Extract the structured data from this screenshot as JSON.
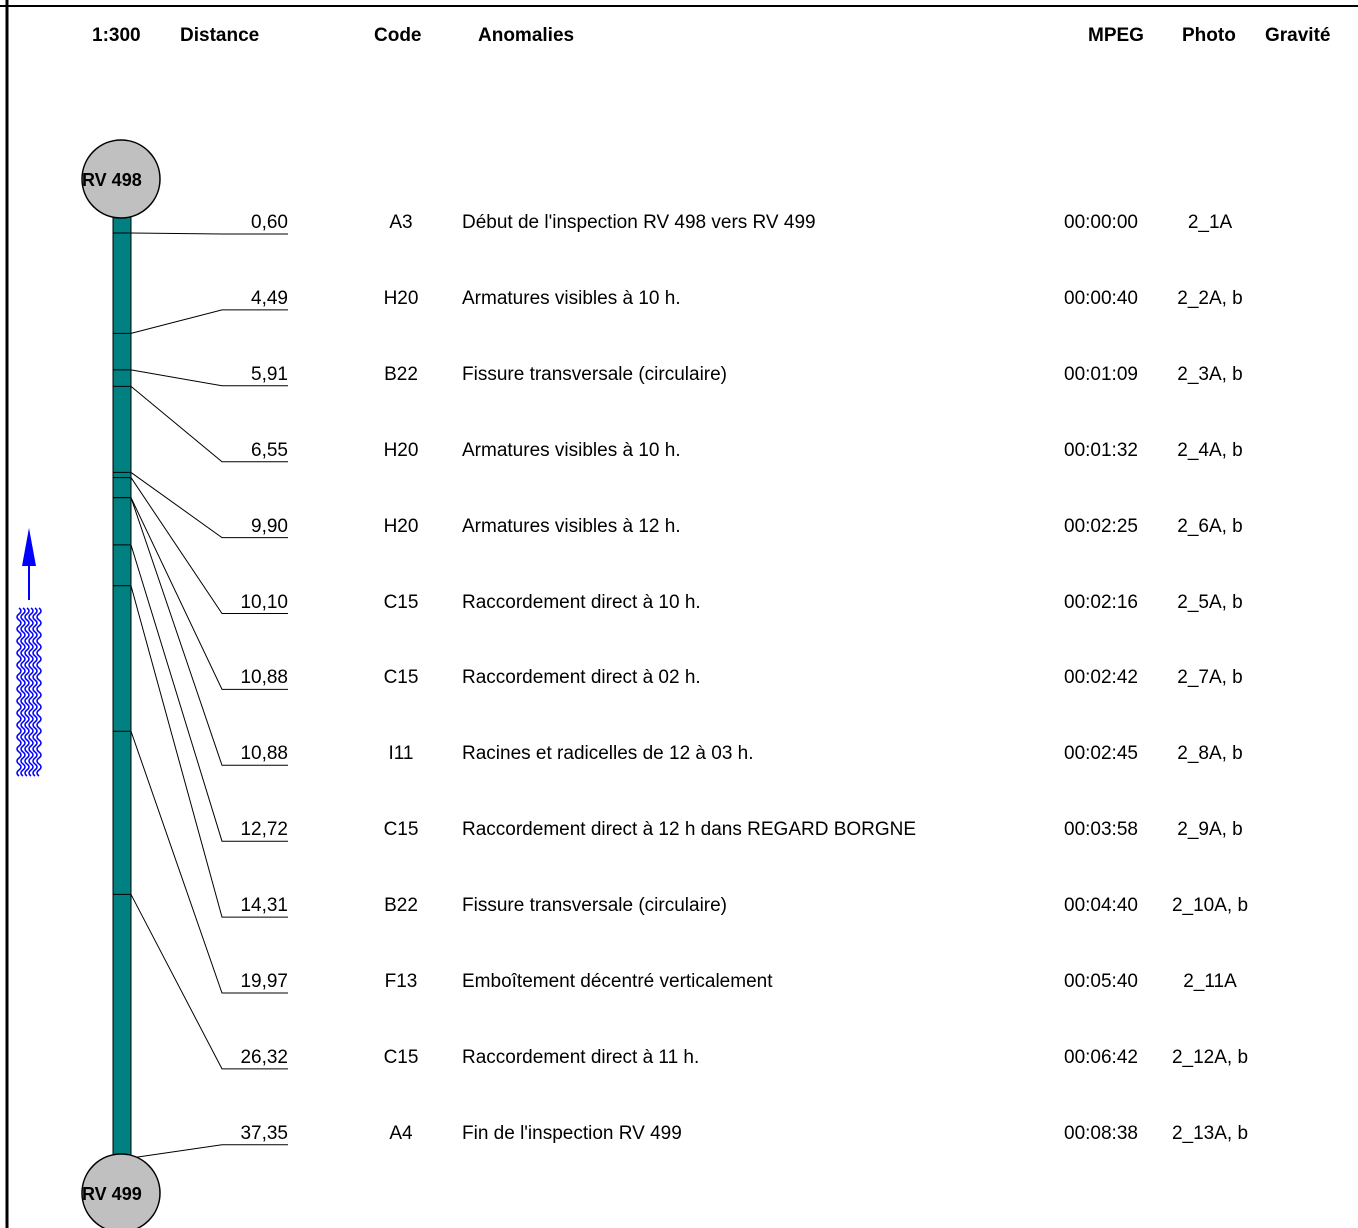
{
  "header": {
    "scale": "1:300",
    "distance": "Distance",
    "code": "Code",
    "anomalies": "Anomalies",
    "mpeg": "MPEG",
    "photo": "Photo",
    "gravite": "Gravité"
  },
  "start_node": "RV 498",
  "end_node": "RV 499",
  "colors": {
    "pipe": "#008080",
    "node": "#c0c0c0",
    "flow_arrow": "#0000ff"
  },
  "flow_direction": "up",
  "rows": [
    {
      "distance": "0,60",
      "code": "A3",
      "anomaly": "Début de l'inspection RV 498 vers RV 499",
      "mpeg": "00:00:00",
      "photo": "2_1A"
    },
    {
      "distance": "4,49",
      "code": "H20",
      "anomaly": "Armatures visibles à 10 h.",
      "mpeg": "00:00:40",
      "photo": "2_2A, b"
    },
    {
      "distance": "5,91",
      "code": "B22",
      "anomaly": "Fissure transversale (circulaire)",
      "mpeg": "00:01:09",
      "photo": "2_3A, b"
    },
    {
      "distance": "6,55",
      "code": "H20",
      "anomaly": "Armatures visibles à 10 h.",
      "mpeg": "00:01:32",
      "photo": "2_4A, b"
    },
    {
      "distance": "9,90",
      "code": "H20",
      "anomaly": "Armatures visibles à 12 h.",
      "mpeg": "00:02:25",
      "photo": "2_6A, b"
    },
    {
      "distance": "10,10",
      "code": "C15",
      "anomaly": "Raccordement direct à 10 h.",
      "mpeg": "00:02:16",
      "photo": "2_5A, b"
    },
    {
      "distance": "10,88",
      "code": "C15",
      "anomaly": "Raccordement direct à 02 h.",
      "mpeg": "00:02:42",
      "photo": "2_7A, b"
    },
    {
      "distance": "10,88",
      "code": "I11",
      "anomaly": "Racines et radicelles  de 12 à 03 h.",
      "mpeg": "00:02:45",
      "photo": "2_8A, b"
    },
    {
      "distance": "12,72",
      "code": "C15",
      "anomaly": "Raccordement direct à 12 h dans REGARD BORGNE",
      "mpeg": "00:03:58",
      "photo": "2_9A, b"
    },
    {
      "distance": "14,31",
      "code": "B22",
      "anomaly": "Fissure transversale  (circulaire)",
      "mpeg": "00:04:40",
      "photo": "2_10A, b"
    },
    {
      "distance": "19,97",
      "code": "F13",
      "anomaly": "Emboîtement décentré verticalement",
      "mpeg": "00:05:40",
      "photo": "2_11A"
    },
    {
      "distance": "26,32",
      "code": "C15",
      "anomaly": "Raccordement direct à 11 h.",
      "mpeg": "00:06:42",
      "photo": "2_12A, b"
    },
    {
      "distance": "37,35",
      "code": "A4",
      "anomaly": "Fin de l'inspection RV 499",
      "mpeg": "00:08:38",
      "photo": "2_13A, b"
    }
  ]
}
